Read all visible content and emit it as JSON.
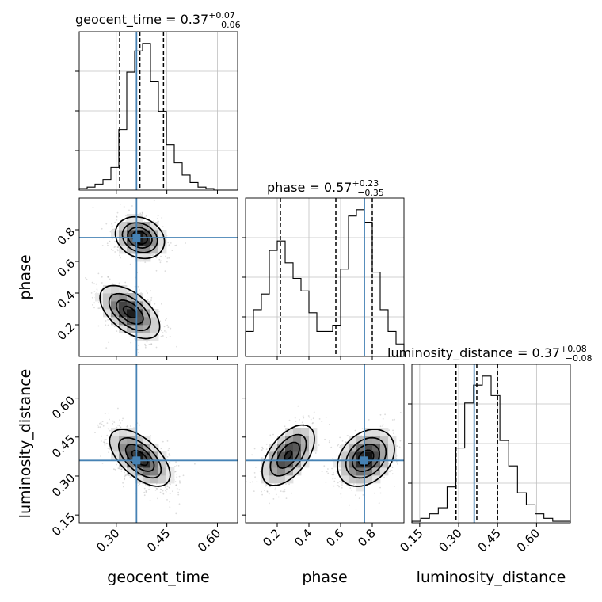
{
  "chart_data": {
    "type": "corner",
    "colors": {
      "truth": "#4682b4",
      "hist": "#000000",
      "grid": "#c0c0c0",
      "points": "#9a9a9a"
    },
    "parameters": [
      {
        "name": "geocent_time",
        "axis_label": "geocent_time",
        "title_prefix": "geocent_time = ",
        "median": "0.37",
        "plus": "+0.07",
        "minus": "−0.06",
        "quantiles": [
          0.31,
          0.37,
          0.44
        ],
        "truth": 0.36,
        "range": [
          0.19,
          0.66
        ],
        "ticks": [
          0.3,
          0.45,
          0.6
        ],
        "tick_labels": [
          "0.30",
          "0.45",
          "0.60"
        ],
        "hist_counts": [
          1,
          2,
          4,
          7,
          15,
          40,
          78,
          92,
          97,
          72,
          52,
          30,
          18,
          10,
          5,
          2,
          1,
          0,
          0,
          0
        ]
      },
      {
        "name": "phase",
        "axis_label": "phase",
        "title_prefix": "phase = ",
        "median": "0.57",
        "plus": "+0.23",
        "minus": "−0.35",
        "quantiles": [
          0.22,
          0.57,
          0.8
        ],
        "truth": 0.75,
        "range": [
          0.0,
          1.0
        ],
        "ticks": [
          0.2,
          0.4,
          0.6,
          0.8
        ],
        "tick_labels": [
          "0.2",
          "0.4",
          "0.6",
          "0.8"
        ],
        "hist_counts": [
          8,
          15,
          20,
          34,
          37,
          30,
          25,
          21,
          14,
          8,
          8,
          10,
          28,
          45,
          47,
          43,
          27,
          15,
          8,
          4
        ]
      },
      {
        "name": "luminosity_distance",
        "axis_label": "luminosity_distance",
        "title_prefix": "luminosity_distance = ",
        "median": "0.37",
        "plus": "+0.08",
        "minus": "−0.08",
        "quantiles": [
          0.29,
          0.37,
          0.45
        ],
        "truth": 0.36,
        "range": [
          0.12,
          0.73
        ],
        "ticks": [
          0.15,
          0.3,
          0.45,
          0.6
        ],
        "tick_labels": [
          "0.15",
          "0.30",
          "0.45",
          "0.60"
        ],
        "hist_counts": [
          1,
          3,
          6,
          10,
          24,
          50,
          80,
          92,
          98,
          85,
          55,
          38,
          20,
          12,
          6,
          3,
          1,
          1
        ]
      }
    ],
    "pair_blobs": [
      {
        "x": "geocent_time",
        "y": "phase",
        "blobs": [
          {
            "cx": 0.37,
            "cy": 0.75,
            "sx": 0.036,
            "sy": 0.065,
            "rho": -0.2,
            "w": 1.0
          },
          {
            "cx": 0.34,
            "cy": 0.28,
            "sx": 0.045,
            "sy": 0.085,
            "rho": -0.55,
            "w": 0.9
          }
        ]
      },
      {
        "x": "geocent_time",
        "y": "luminosity_distance",
        "blobs": [
          {
            "cx": 0.37,
            "cy": 0.37,
            "sx": 0.045,
            "sy": 0.055,
            "rho": -0.6,
            "w": 1.0
          }
        ]
      },
      {
        "x": "phase",
        "y": "luminosity_distance",
        "blobs": [
          {
            "cx": 0.27,
            "cy": 0.38,
            "sx": 0.085,
            "sy": 0.06,
            "rho": 0.55,
            "w": 0.9
          },
          {
            "cx": 0.76,
            "cy": 0.37,
            "sx": 0.09,
            "sy": 0.055,
            "rho": 0.3,
            "w": 1.0
          }
        ]
      }
    ]
  }
}
